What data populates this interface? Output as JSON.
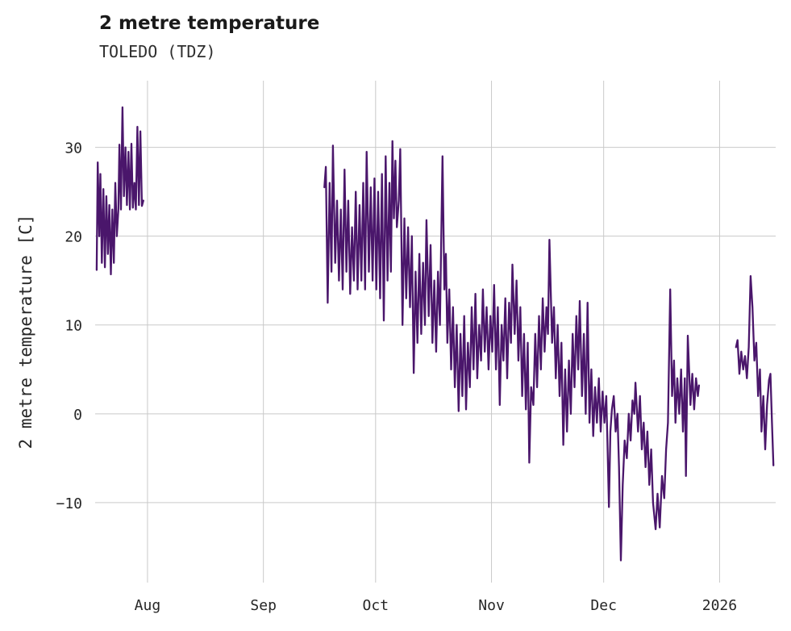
{
  "chart_data": {
    "type": "line",
    "title": "2 metre temperature",
    "subtitle": "TOLEDO (TDZ)",
    "ylabel": "2 metre temperature [C]",
    "xlabel": "",
    "x_unit": "days since 2025-07-19",
    "xlim": [
      -1,
      181
    ],
    "ylim": [
      -19,
      37.5
    ],
    "grid": true,
    "legend": "none",
    "line_color": "#4a166b",
    "grid_color": "#c9c9c9",
    "background_color": "#ffffff",
    "yticks": [
      {
        "v": -10,
        "label": "−10"
      },
      {
        "v": 0,
        "label": "0"
      },
      {
        "v": 10,
        "label": "10"
      },
      {
        "v": 20,
        "label": "20"
      },
      {
        "v": 30,
        "label": "30"
      }
    ],
    "xticks": [
      {
        "pos": 13,
        "label": "Aug"
      },
      {
        "pos": 44,
        "label": "Sep"
      },
      {
        "pos": 74,
        "label": "Oct"
      },
      {
        "pos": 105,
        "label": "Nov"
      },
      {
        "pos": 135,
        "label": "Dec"
      },
      {
        "pos": 166,
        "label": "2026"
      }
    ],
    "series": [
      {
        "name": "2 metre temperature",
        "segments": [
          [
            [
              -0.6,
              16.2
            ],
            [
              -0.3,
              28.3
            ],
            [
              0.1,
              20
            ],
            [
              0.4,
              27
            ],
            [
              0.8,
              17
            ],
            [
              1.2,
              25.3
            ],
            [
              1.6,
              16.5
            ],
            [
              2.0,
              24.5
            ],
            [
              2.4,
              18
            ],
            [
              2.8,
              23.5
            ],
            [
              3.2,
              15.7
            ],
            [
              3.6,
              23
            ],
            [
              4.0,
              17
            ],
            [
              4.4,
              26
            ],
            [
              4.8,
              20
            ],
            [
              5.2,
              23
            ],
            [
              5.5,
              30.3
            ],
            [
              5.9,
              23
            ],
            [
              6.3,
              34.5
            ],
            [
              6.7,
              24.5
            ],
            [
              7.1,
              30
            ],
            [
              7.5,
              23.5
            ],
            [
              7.9,
              29.5
            ],
            [
              8.3,
              23
            ],
            [
              8.7,
              30.4
            ],
            [
              9.1,
              23.2
            ],
            [
              9.5,
              26
            ],
            [
              9.9,
              23
            ],
            [
              10.3,
              32.3
            ],
            [
              10.7,
              23.5
            ],
            [
              11.1,
              31.8
            ],
            [
              11.5,
              23.4
            ],
            [
              11.9,
              24
            ]
          ],
          [
            [
              60.3,
              25.5
            ],
            [
              60.7,
              27.8
            ],
            [
              61.2,
              12.5
            ],
            [
              61.7,
              26.0
            ],
            [
              62.2,
              16.0
            ],
            [
              62.6,
              30.2
            ],
            [
              63.2,
              17.0
            ],
            [
              63.7,
              24.0
            ],
            [
              64.2,
              15.0
            ],
            [
              64.7,
              23.0
            ],
            [
              65.2,
              14.0
            ],
            [
              65.7,
              27.5
            ],
            [
              66.2,
              16.0
            ],
            [
              66.7,
              24.0
            ],
            [
              67.2,
              13.5
            ],
            [
              67.7,
              21.0
            ],
            [
              68.2,
              15.0
            ],
            [
              68.7,
              25.0
            ],
            [
              69.2,
              14.0
            ],
            [
              69.7,
              23.5
            ],
            [
              70.2,
              15.0
            ],
            [
              70.7,
              26.0
            ],
            [
              71.2,
              14.0
            ],
            [
              71.6,
              29.5
            ],
            [
              72.2,
              16.0
            ],
            [
              72.7,
              25.5
            ],
            [
              73.2,
              15.0
            ],
            [
              73.7,
              26.5
            ],
            [
              74.2,
              14.0
            ],
            [
              74.7,
              25.0
            ],
            [
              75.2,
              13.0
            ],
            [
              75.7,
              27.0
            ],
            [
              76.2,
              10.5
            ],
            [
              76.7,
              29.0
            ],
            [
              77.2,
              15.0
            ],
            [
              77.7,
              26.0
            ],
            [
              78.1,
              16.0
            ],
            [
              78.5,
              30.7
            ],
            [
              78.9,
              22.0
            ],
            [
              79.3,
              28.5
            ],
            [
              79.7,
              21.0
            ],
            [
              80.2,
              24.0
            ],
            [
              80.6,
              29.8
            ],
            [
              81.2,
              10.0
            ],
            [
              81.7,
              22.0
            ],
            [
              82.2,
              13.0
            ],
            [
              82.7,
              21.0
            ],
            [
              83.2,
              12.0
            ],
            [
              83.7,
              20.0
            ],
            [
              84.2,
              4.6
            ],
            [
              84.7,
              16.0
            ],
            [
              85.2,
              8.0
            ],
            [
              85.7,
              18.0
            ],
            [
              86.2,
              9.0
            ],
            [
              86.7,
              17.0
            ],
            [
              87.2,
              10.0
            ],
            [
              87.6,
              21.8
            ],
            [
              88.2,
              11.0
            ],
            [
              88.7,
              19.0
            ],
            [
              89.2,
              8.0
            ],
            [
              89.7,
              15.0
            ],
            [
              90.2,
              7.0
            ],
            [
              90.7,
              16.0
            ],
            [
              91.2,
              10.0
            ],
            [
              91.9,
              29.0
            ],
            [
              92.4,
              14.0
            ],
            [
              92.8,
              18.0
            ],
            [
              93.2,
              8.0
            ],
            [
              93.7,
              14.0
            ],
            [
              94.2,
              5.0
            ],
            [
              94.7,
              12.0
            ],
            [
              95.2,
              3.0
            ],
            [
              95.7,
              10.0
            ],
            [
              96.2,
              0.3
            ],
            [
              96.7,
              9.0
            ],
            [
              97.2,
              2.0
            ],
            [
              97.7,
              11.0
            ],
            [
              98.2,
              0.5
            ],
            [
              98.7,
              8.0
            ],
            [
              99.2,
              3.0
            ],
            [
              99.7,
              12.0
            ],
            [
              100.2,
              5.0
            ],
            [
              100.7,
              13.5
            ],
            [
              101.2,
              4.0
            ],
            [
              101.7,
              10.0
            ],
            [
              102.2,
              6.0
            ],
            [
              102.7,
              14.0
            ],
            [
              103.2,
              7.0
            ],
            [
              103.7,
              12.0
            ],
            [
              104.2,
              5.0
            ],
            [
              104.7,
              11.0
            ],
            [
              105.2,
              7.0
            ],
            [
              105.7,
              14.5
            ],
            [
              106.2,
              5.0
            ],
            [
              106.7,
              12.0
            ],
            [
              107.2,
              1.0
            ],
            [
              107.7,
              10.0
            ],
            [
              108.2,
              6.0
            ],
            [
              108.7,
              13.0
            ],
            [
              109.2,
              4.0
            ],
            [
              109.7,
              12.5
            ],
            [
              110.2,
              8.0
            ],
            [
              110.6,
              16.8
            ],
            [
              111.2,
              9.0
            ],
            [
              111.7,
              15.0
            ],
            [
              112.2,
              6.0
            ],
            [
              112.7,
              12.0
            ],
            [
              113.2,
              2.0
            ],
            [
              113.7,
              9.0
            ],
            [
              114.2,
              0.5
            ],
            [
              114.7,
              8.0
            ],
            [
              115.1,
              -5.5
            ],
            [
              115.6,
              3.0
            ],
            [
              116.2,
              1.0
            ],
            [
              116.7,
              9.0
            ],
            [
              117.2,
              3.0
            ],
            [
              117.7,
              11.0
            ],
            [
              118.2,
              5.0
            ],
            [
              118.7,
              13.0
            ],
            [
              119.2,
              7.0
            ],
            [
              119.7,
              12.0
            ],
            [
              120.1,
              9.0
            ],
            [
              120.5,
              19.6
            ],
            [
              121.2,
              8.0
            ],
            [
              121.7,
              12.0
            ],
            [
              122.2,
              4.0
            ],
            [
              122.7,
              10.0
            ],
            [
              123.2,
              2.0
            ],
            [
              123.7,
              8.0
            ],
            [
              124.2,
              -3.5
            ],
            [
              124.7,
              5.0
            ],
            [
              125.2,
              -2.0
            ],
            [
              125.7,
              6.0
            ],
            [
              126.2,
              0.0
            ],
            [
              126.7,
              9.0
            ],
            [
              127.2,
              3.0
            ],
            [
              127.7,
              11.0
            ],
            [
              128.2,
              5.0
            ],
            [
              128.6,
              12.7
            ],
            [
              129.2,
              2.0
            ],
            [
              129.7,
              9.0
            ],
            [
              130.2,
              0.0
            ],
            [
              130.7,
              12.5
            ],
            [
              131.2,
              -1.0
            ],
            [
              131.7,
              5.0
            ],
            [
              132.2,
              -2.5
            ],
            [
              132.7,
              3.0
            ],
            [
              133.2,
              -1.0
            ],
            [
              133.7,
              4.0
            ],
            [
              134.2,
              -2.0
            ],
            [
              134.7,
              2.5
            ],
            [
              135.2,
              -1.0
            ],
            [
              135.7,
              2.0
            ],
            [
              136.0,
              -3.0
            ],
            [
              136.4,
              -10.5
            ],
            [
              136.8,
              -2.0
            ],
            [
              137.2,
              0.5
            ],
            [
              137.7,
              2.0
            ],
            [
              138.2,
              -2.0
            ],
            [
              138.7,
              0.0
            ],
            [
              139.1,
              -6.0
            ],
            [
              139.6,
              -16.5
            ],
            [
              140.1,
              -8.0
            ],
            [
              140.6,
              -3.0
            ],
            [
              141.2,
              -5.0
            ],
            [
              141.7,
              0.0
            ],
            [
              142.2,
              -3.0
            ],
            [
              142.7,
              1.5
            ],
            [
              143.2,
              0.0
            ],
            [
              143.5,
              3.5
            ],
            [
              144.2,
              -2.0
            ],
            [
              144.7,
              2.0
            ],
            [
              145.2,
              -4.0
            ],
            [
              145.7,
              -1.0
            ],
            [
              146.2,
              -6.0
            ],
            [
              146.7,
              -2.0
            ],
            [
              147.2,
              -8.0
            ],
            [
              147.7,
              -4.0
            ],
            [
              148.2,
              -10.0
            ],
            [
              148.9,
              -13.0
            ],
            [
              149.4,
              -9.0
            ],
            [
              150.0,
              -12.8
            ],
            [
              150.6,
              -7.0
            ],
            [
              151.2,
              -9.5
            ],
            [
              151.7,
              -4.0
            ],
            [
              152.2,
              -1.0
            ],
            [
              152.8,
              14.0
            ],
            [
              153.3,
              2.0
            ],
            [
              153.8,
              6.0
            ],
            [
              154.2,
              -1.0
            ],
            [
              154.7,
              4.0
            ],
            [
              155.2,
              0.0
            ],
            [
              155.7,
              5.0
            ],
            [
              156.2,
              -2.0
            ],
            [
              156.7,
              4.0
            ],
            [
              157.0,
              -7.0
            ],
            [
              157.5,
              8.8
            ],
            [
              158.2,
              1.0
            ],
            [
              158.7,
              4.5
            ],
            [
              159.2,
              0.5
            ],
            [
              159.7,
              4.0
            ],
            [
              160.2,
              2.0
            ],
            [
              160.5,
              3.2
            ]
          ],
          [
            [
              170.4,
              7.5
            ],
            [
              170.8,
              8.3
            ],
            [
              171.3,
              4.5
            ],
            [
              171.8,
              7.0
            ],
            [
              172.3,
              5.0
            ],
            [
              172.8,
              6.5
            ],
            [
              173.3,
              4.0
            ],
            [
              173.8,
              7.5
            ],
            [
              174.3,
              15.5
            ],
            [
              174.8,
              12.0
            ],
            [
              175.3,
              6.0
            ],
            [
              175.8,
              8.0
            ],
            [
              176.3,
              2.0
            ],
            [
              176.8,
              5.0
            ],
            [
              177.2,
              -2.0
            ],
            [
              177.7,
              2.0
            ],
            [
              178.2,
              -4.0
            ],
            [
              178.7,
              1.0
            ],
            [
              179.2,
              3.8
            ],
            [
              179.6,
              4.5
            ],
            [
              180.0,
              -1.0
            ],
            [
              180.4,
              -5.8
            ]
          ]
        ]
      }
    ]
  }
}
